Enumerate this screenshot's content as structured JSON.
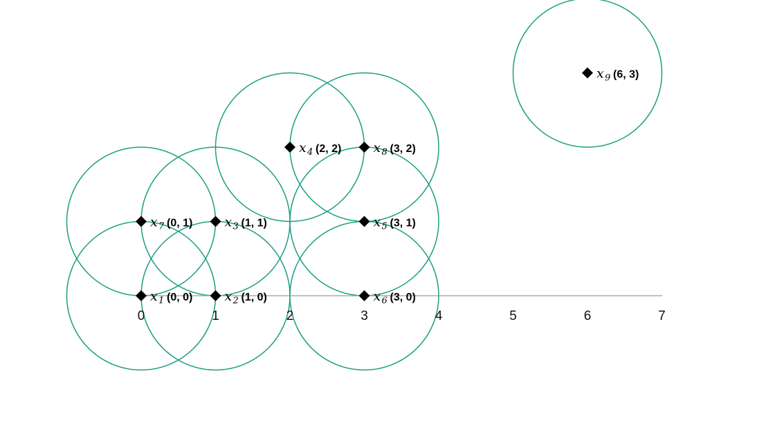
{
  "chart_data": {
    "type": "scatter",
    "title": "",
    "xlabel": "",
    "ylabel": "",
    "xlim": [
      0,
      7
    ],
    "ylim": [
      0,
      3
    ],
    "x_ticks": [
      "0",
      "1",
      "2",
      "3",
      "4",
      "5",
      "6",
      "7"
    ],
    "grid": false,
    "circle_radius": 1,
    "colors": {
      "circle": "#1a9e82",
      "point": "#000000",
      "axis": "#9a9a9a"
    },
    "points": [
      {
        "label": "x",
        "sub": "1",
        "coord": "(0, 0)",
        "x": 0,
        "y": 0
      },
      {
        "label": "x",
        "sub": "2",
        "coord": "(1, 0)",
        "x": 1,
        "y": 0
      },
      {
        "label": "x",
        "sub": "3",
        "coord": "(1, 1)",
        "x": 1,
        "y": 1
      },
      {
        "label": "x",
        "sub": "4",
        "coord": "(2, 2)",
        "x": 2,
        "y": 2
      },
      {
        "label": "x",
        "sub": "5",
        "coord": "(3, 1)",
        "x": 3,
        "y": 1
      },
      {
        "label": "x",
        "sub": "6",
        "coord": "(3, 0)",
        "x": 3,
        "y": 0
      },
      {
        "label": "x",
        "sub": "7",
        "coord": "(0, 1)",
        "x": 0,
        "y": 1
      },
      {
        "label": "x",
        "sub": "8",
        "coord": "(3, 2)",
        "x": 3,
        "y": 2
      },
      {
        "label": "x",
        "sub": "9",
        "coord": "(6, 3)",
        "x": 6,
        "y": 3
      }
    ]
  }
}
